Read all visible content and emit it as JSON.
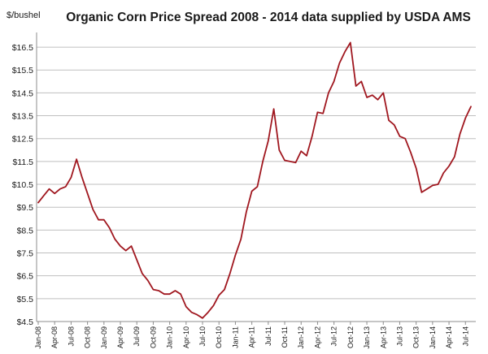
{
  "chart_data": {
    "type": "line",
    "title": "Organic Corn Price Spread 2008 - 2014 data supplied by USDA AMS",
    "ylabel": "$/bushel",
    "xlabel": "",
    "ylim": [
      4.5,
      17.0
    ],
    "yticks": [
      4.5,
      5.5,
      6.5,
      7.5,
      8.5,
      9.5,
      10.5,
      11.5,
      12.5,
      13.5,
      14.5,
      15.5,
      16.5
    ],
    "ytick_labels": [
      "$4.5",
      "$5.5",
      "$6.5",
      "$7.5",
      "$8.5",
      "$9.5",
      "$10.5",
      "$11.5",
      "$12.5",
      "$13.5",
      "$14.5",
      "$15.5",
      "$16.5"
    ],
    "grid": true,
    "legend": "none",
    "line_color": "#a0171f",
    "x_tick_labels": [
      "Jan-08",
      "Apr-08",
      "Jul-08",
      "Oct-08",
      "Jan-09",
      "Apr-09",
      "Jul-09",
      "Oct-09",
      "Jan-10",
      "Apr-10",
      "Jul-10",
      "Oct-10",
      "Jan-11",
      "Apr-11",
      "Jul-11",
      "Oct-11",
      "Jan-12",
      "Apr-12",
      "Jul-12",
      "Oct-12",
      "Jan-13",
      "Apr-13",
      "Jul-13",
      "Oct-13",
      "Jan-14",
      "Apr-14",
      "Jul-14"
    ],
    "x_tick_step": 3,
    "series": [
      {
        "name": "",
        "values": [
          9.7,
          10.0,
          10.3,
          10.1,
          10.3,
          10.4,
          10.8,
          11.6,
          10.8,
          10.1,
          9.4,
          8.95,
          8.95,
          8.6,
          8.1,
          7.8,
          7.6,
          7.8,
          7.2,
          6.6,
          6.3,
          5.9,
          5.85,
          5.7,
          5.7,
          5.85,
          5.7,
          5.15,
          4.9,
          4.8,
          4.65,
          4.9,
          5.2,
          5.65,
          5.9,
          6.6,
          7.4,
          8.1,
          9.3,
          10.2,
          10.4,
          11.5,
          12.4,
          13.8,
          12.0,
          11.55,
          11.5,
          11.45,
          11.95,
          11.75,
          12.6,
          13.65,
          13.6,
          14.5,
          15.0,
          15.8,
          16.3,
          16.7,
          14.8,
          15.0,
          14.3,
          14.4,
          14.2,
          14.5,
          13.3,
          13.1,
          12.6,
          12.5,
          11.9,
          11.2,
          10.15,
          10.3,
          10.45,
          10.5,
          11.0,
          11.3,
          11.7,
          12.7,
          13.4,
          13.9
        ]
      }
    ]
  }
}
